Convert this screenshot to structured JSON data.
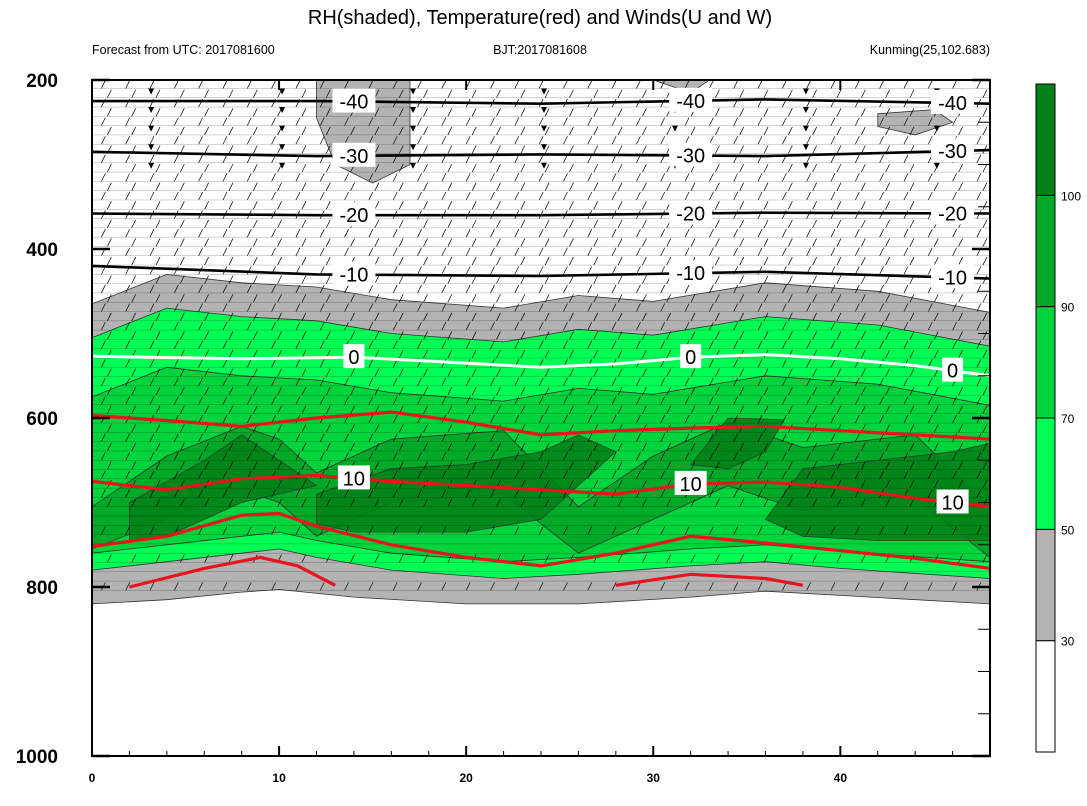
{
  "chart_data": {
    "type": "contour",
    "title": "RH(shaded), Temperature(red) and Winds(U and W)",
    "subtitle_left": "Forecast from UTC: 2017081600",
    "subtitle_center": "BJT:2017081608",
    "subtitle_right": "Kunming(25,102.683)",
    "x_ticks": [
      "0",
      "10",
      "20",
      "30",
      "40"
    ],
    "x_range": [
      0,
      48
    ],
    "y_ticks": [
      "200",
      "400",
      "600",
      "800",
      "1000"
    ],
    "y_range": [
      200,
      1000
    ],
    "colorbar_ticks": [
      "30",
      "50",
      "70",
      "90",
      "100"
    ],
    "colorbar_colors": [
      "#ffffff",
      "#b3b3b3",
      "#00ff55",
      "#00d43c",
      "#00aa28",
      "#008218"
    ],
    "rh_boundaries": [
      {
        "level": 30,
        "values": [
          [
            0,
            820
          ],
          [
            4,
            815
          ],
          [
            8,
            806
          ],
          [
            10,
            803
          ],
          [
            14,
            812
          ],
          [
            20,
            820
          ],
          [
            26,
            820
          ],
          [
            32,
            812
          ],
          [
            36,
            805
          ],
          [
            40,
            810
          ],
          [
            48,
            820
          ]
        ]
      },
      {
        "level": 50,
        "values": [
          [
            0,
            465
          ],
          [
            4,
            430
          ],
          [
            8,
            440
          ],
          [
            12,
            445
          ],
          [
            16,
            460
          ],
          [
            22,
            470
          ],
          [
            26,
            455
          ],
          [
            30,
            462
          ],
          [
            36,
            440
          ],
          [
            42,
            450
          ],
          [
            48,
            475
          ]
        ]
      },
      {
        "level": 70,
        "values": [
          [
            0,
            780
          ],
          [
            4,
            770
          ],
          [
            8,
            760
          ],
          [
            10,
            755
          ],
          [
            12,
            765
          ],
          [
            16,
            780
          ],
          [
            22,
            790
          ],
          [
            26,
            785
          ],
          [
            32,
            775
          ],
          [
            36,
            770
          ],
          [
            40,
            778
          ],
          [
            48,
            790
          ]
        ]
      },
      {
        "level": 90,
        "values": [
          [
            0,
            760
          ],
          [
            4,
            700
          ],
          [
            8,
            665
          ],
          [
            10,
            680
          ],
          [
            12,
            720
          ],
          [
            16,
            680
          ],
          [
            22,
            670
          ],
          [
            26,
            760
          ],
          [
            30,
            700
          ],
          [
            34,
            660
          ],
          [
            38,
            690
          ],
          [
            44,
            675
          ],
          [
            48,
            760
          ]
        ]
      }
    ],
    "temperature_contours": [
      {
        "label": "0",
        "color": "#ffffff",
        "points": [
          [
            0,
            527
          ],
          [
            8,
            530
          ],
          [
            14,
            528
          ],
          [
            20,
            535
          ],
          [
            24,
            540
          ],
          [
            28,
            536
          ],
          [
            32,
            528
          ],
          [
            36,
            525
          ],
          [
            40,
            530
          ],
          [
            44,
            538
          ],
          [
            48,
            550
          ]
        ]
      },
      {
        "label": "",
        "color": "#e8141e",
        "points": [
          [
            0,
            597
          ],
          [
            4,
            603
          ],
          [
            8,
            610
          ],
          [
            12,
            600
          ],
          [
            16,
            593
          ],
          [
            20,
            605
          ],
          [
            24,
            620
          ],
          [
            28,
            615
          ],
          [
            32,
            612
          ],
          [
            36,
            610
          ],
          [
            40,
            615
          ],
          [
            44,
            620
          ],
          [
            48,
            625
          ]
        ]
      },
      {
        "label": "10",
        "color": "#e8141e",
        "points": [
          [
            0,
            675
          ],
          [
            4,
            685
          ],
          [
            8,
            672
          ],
          [
            12,
            668
          ],
          [
            16,
            675
          ],
          [
            20,
            680
          ],
          [
            24,
            685
          ],
          [
            28,
            690
          ],
          [
            32,
            678
          ],
          [
            36,
            676
          ],
          [
            40,
            682
          ],
          [
            44,
            695
          ],
          [
            48,
            705
          ]
        ]
      },
      {
        "label": "",
        "color": "#e8141e",
        "points": [
          [
            0,
            752
          ],
          [
            4,
            740
          ],
          [
            8,
            715
          ],
          [
            10,
            713
          ],
          [
            12,
            728
          ],
          [
            16,
            750
          ],
          [
            20,
            765
          ],
          [
            24,
            775
          ],
          [
            28,
            760
          ],
          [
            32,
            740
          ],
          [
            36,
            748
          ],
          [
            40,
            757
          ],
          [
            44,
            766
          ],
          [
            48,
            778
          ]
        ]
      },
      {
        "label": "",
        "color": "#e8141e",
        "points": [
          [
            2,
            800
          ],
          [
            6,
            778
          ],
          [
            9,
            765
          ],
          [
            11,
            775
          ],
          [
            13,
            798
          ]
        ]
      },
      {
        "label": "",
        "color": "#e8141e",
        "points": [
          [
            28,
            798
          ],
          [
            32,
            785
          ],
          [
            36,
            790
          ],
          [
            38,
            798
          ]
        ]
      }
    ],
    "black_isotherms": [
      {
        "label": "-40",
        "points": [
          [
            0,
            225
          ],
          [
            12,
            225
          ],
          [
            24,
            228
          ],
          [
            36,
            223
          ],
          [
            48,
            228
          ]
        ]
      },
      {
        "label": "-30",
        "points": [
          [
            0,
            285
          ],
          [
            12,
            290
          ],
          [
            24,
            288
          ],
          [
            36,
            290
          ],
          [
            48,
            283
          ]
        ]
      },
      {
        "label": "-20",
        "points": [
          [
            0,
            358
          ],
          [
            12,
            360
          ],
          [
            24,
            360
          ],
          [
            36,
            357
          ],
          [
            48,
            358
          ]
        ]
      },
      {
        "label": "-10",
        "points": [
          [
            0,
            420
          ],
          [
            12,
            430
          ],
          [
            24,
            432
          ],
          [
            36,
            427
          ],
          [
            48,
            435
          ]
        ]
      }
    ]
  }
}
